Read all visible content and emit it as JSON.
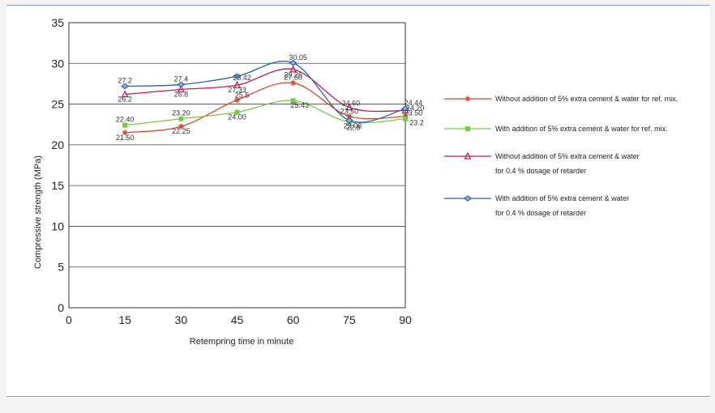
{
  "chart_data": {
    "type": "line",
    "title": "",
    "xlabel": "Retempring time in minute",
    "ylabel": "Compressive strength (MPa)",
    "x": [
      15,
      30,
      45,
      60,
      75,
      90
    ],
    "xticks": [
      "0",
      "15",
      "30",
      "45",
      "60",
      "75",
      "90"
    ],
    "yticks": [
      "0",
      "5",
      "10",
      "15",
      "20",
      "25",
      "30",
      "35"
    ],
    "xlim": [
      0,
      90
    ],
    "ylim": [
      0,
      35
    ],
    "grid": "horizontal",
    "legend_position": "right",
    "series": [
      {
        "name": "Without addition of 5% extra cement & water for ref. mix.",
        "legend_lines": [
          "Without addition of 5% extra cement & water for ref. mix."
        ],
        "color": "#d9472b",
        "marker": "asterisk",
        "values": [
          21.5,
          22.25,
          25.5,
          27.6,
          23.5,
          23.5
        ],
        "labels": [
          "21.50",
          "22.25",
          "25.5",
          "27.60",
          "23.50",
          "23.50"
        ]
      },
      {
        "name": "With addition of 5% extra cement & water for ref. mix.",
        "legend_lines": [
          "With addition of 5% extra cement & water for ref. mix."
        ],
        "color": "#7ac943",
        "marker": "square",
        "values": [
          22.4,
          23.2,
          24.0,
          25.43,
          22.8,
          23.2
        ],
        "labels": [
          "22.40",
          "23.20",
          "24.00",
          "25.43",
          "22.8",
          "23.2"
        ]
      },
      {
        "name": "Without addition of 5% extra cement & water for 0.4 % dosage of retarder",
        "legend_lines": [
          "Without  addition of 5% extra cement & water",
          "for 0.4 % dosage of retarder"
        ],
        "color": "#c2185b",
        "marker": "triangle",
        "values": [
          26.2,
          26.8,
          27.33,
          29.26,
          24.6,
          24.2
        ],
        "labels": [
          "26.2",
          "26.8",
          "27.33",
          "29.26",
          "24.60",
          "24.20"
        ]
      },
      {
        "name": "With addition of 5% extra cement & water for 0.4 % dosage of retarder",
        "legend_lines": [
          "With  addition of 5% extra cement & water",
          "for 0.4 % dosage of retarder"
        ],
        "color": "#2c5fb0",
        "marker": "diamond",
        "values": [
          27.2,
          27.4,
          28.42,
          30.05,
          23.0,
          24.44
        ],
        "labels": [
          "27.2",
          "27.4",
          "28.42",
          "30.05",
          "23.00",
          "24.44"
        ]
      }
    ]
  }
}
